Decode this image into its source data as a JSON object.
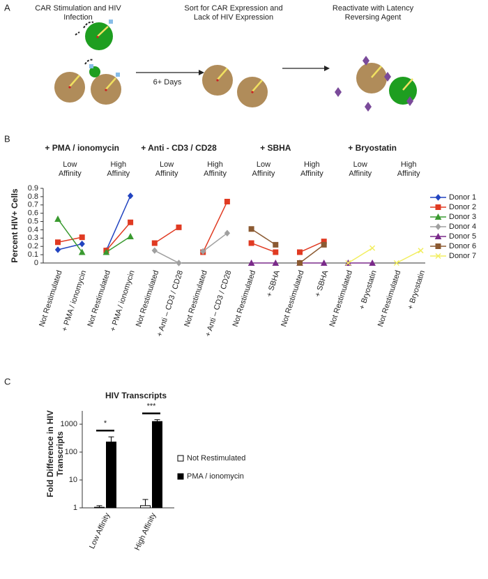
{
  "panel_a": {
    "label": "A",
    "steps": [
      "CAR Stimulation and HIV Infection",
      "Sort for CAR Expression and Lack of HIV Expression",
      "Reactivate with Latency Reversing Agent"
    ],
    "arrow_label": "6+ Days"
  },
  "chart_data": [
    {
      "type": "line",
      "panel_label": "B",
      "y_label": "Percent HIV+ Cells",
      "groups": [
        "+ PMA / ionomycin",
        "+ Anti - CD3 / CD28",
        "+ SBHA",
        "+ Bryostatin"
      ],
      "subgroups": [
        "Low Affinity",
        "High Affinity",
        "Low Affinity",
        "High Affinity",
        "Low Affinity",
        "High Affinity",
        "Low Affinity",
        "High Affinity"
      ],
      "categories": [
        "Not Restimulated",
        "+ PMA / ionomycin",
        "Not Restimulated",
        "+ PMA / ionomycin",
        "Not Restimulated",
        "+ Anti – CD3 / CD28",
        "Not Restimulated",
        "+ Anti – CD3 / CD28",
        "Not Restimulated",
        "+ SBHA",
        "Not Restimulated",
        "+ SBHA",
        "Not Restimulated",
        "+ Bryostatin",
        "Not Restimulated",
        "+ Bryostatin"
      ],
      "series": [
        {
          "name": "Donor 1",
          "color": "#2244c0",
          "marker": "diamond",
          "values": [
            0.16,
            0.23,
            0.15,
            0.81,
            null,
            null,
            null,
            null,
            null,
            null,
            null,
            null,
            null,
            null,
            null,
            null
          ]
        },
        {
          "name": "Donor 2",
          "color": "#e03a22",
          "marker": "square",
          "values": [
            0.25,
            0.31,
            0.15,
            0.49,
            0.24,
            0.43,
            0.13,
            0.74,
            0.24,
            0.13,
            0.13,
            0.26,
            null,
            null,
            null,
            null
          ]
        },
        {
          "name": "Donor 3",
          "color": "#3a9a30",
          "marker": "triangle",
          "values": [
            0.53,
            0.13,
            0.13,
            0.32,
            null,
            null,
            null,
            null,
            null,
            null,
            null,
            null,
            null,
            null,
            null,
            null
          ]
        },
        {
          "name": "Donor 4",
          "color": "#a0a0a0",
          "marker": "diamond",
          "values": [
            null,
            null,
            null,
            null,
            0.15,
            0,
            0.14,
            0.36,
            null,
            null,
            null,
            null,
            null,
            null,
            null,
            null
          ]
        },
        {
          "name": "Donor 5",
          "color": "#7a2a8a",
          "marker": "triangle",
          "values": [
            null,
            null,
            null,
            null,
            null,
            null,
            null,
            null,
            0,
            0,
            0,
            0,
            0,
            0,
            null,
            null
          ]
        },
        {
          "name": "Donor 6",
          "color": "#8b5a32",
          "marker": "square",
          "values": [
            null,
            null,
            null,
            null,
            null,
            null,
            null,
            null,
            0.41,
            0.22,
            0,
            0.22,
            null,
            null,
            null,
            null
          ]
        },
        {
          "name": "Donor 7",
          "color": "#f2ee60",
          "marker": "x",
          "values": [
            null,
            null,
            null,
            null,
            null,
            null,
            null,
            null,
            null,
            null,
            null,
            null,
            0,
            0.18,
            0,
            0.15
          ]
        }
      ],
      "ylim": [
        0,
        0.9
      ],
      "yticks": [
        0,
        0.1,
        0.2,
        0.3,
        0.4,
        0.5,
        0.6,
        0.7,
        0.8,
        0.9
      ],
      "grid": false,
      "legend": "right"
    },
    {
      "type": "bar",
      "panel_label": "C",
      "title": "HIV Transcripts",
      "y_label": "Fold Difference in HIV Transcripts",
      "categories": [
        "Low Affinity",
        "High Affinity"
      ],
      "series": [
        {
          "name": "Not Restimulated",
          "color": "#ffffff",
          "values": [
            1.05,
            1.2
          ],
          "errors": [
            0.15,
            0.8
          ]
        },
        {
          "name": "PMA / ionomycin",
          "color": "#000000",
          "values": [
            230,
            1250
          ],
          "errors": [
            120,
            200
          ]
        }
      ],
      "annotations": [
        "*",
        "***"
      ],
      "log_scale": true,
      "ylim": [
        1,
        3000
      ],
      "yticks": [
        1,
        10,
        100,
        1000
      ],
      "grid": false,
      "legend": "right"
    }
  ]
}
